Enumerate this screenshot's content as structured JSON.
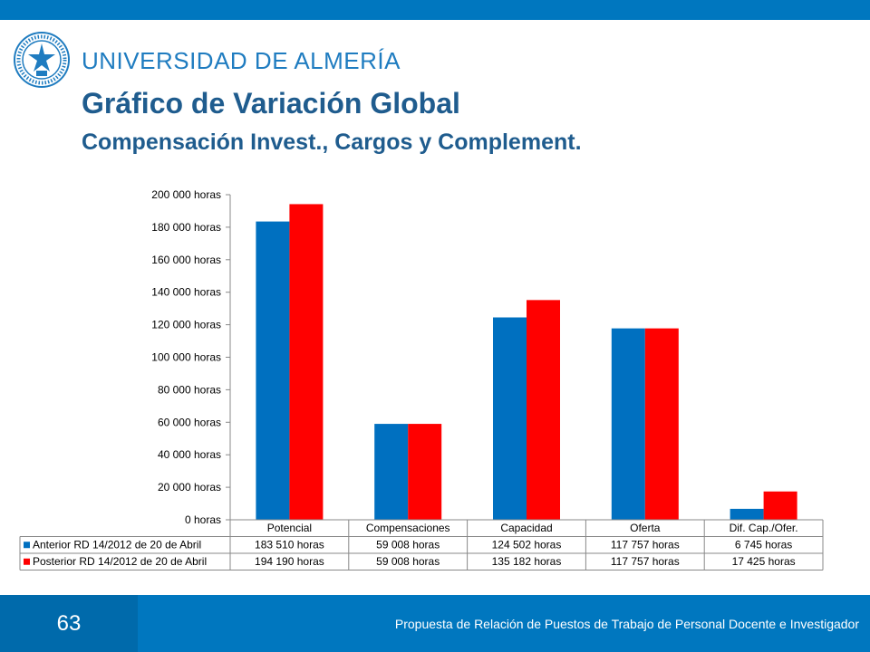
{
  "header": {
    "university": "UNIVERSIDAD DE ALMERÍA",
    "title": "Gráfico de Variación Global",
    "subtitle": "Compensación Invest., Cargos y Complement."
  },
  "footer": {
    "page_number": "63",
    "text": "Propuesta de Relación de Puestos de Trabajo de Personal Docente e Investigador"
  },
  "colors": {
    "brand_blue": "#0077bf",
    "series_anterior": "#0070c0",
    "series_posterior": "#ff0000"
  },
  "chart_data": {
    "type": "bar",
    "categories": [
      "Potencial",
      "Compensaciones",
      "Capacidad",
      "Oferta",
      "Dif. Cap./Ofer."
    ],
    "series": [
      {
        "name": "Anterior RD 14/2012 de 20 de Abril",
        "values": [
          183510,
          59008,
          124502,
          117757,
          6745
        ],
        "labels": [
          "183 510 horas",
          "59 008 horas",
          "124 502 horas",
          "117 757 horas",
          "6 745 horas"
        ]
      },
      {
        "name": "Posterior RD 14/2012 de 20 de Abril",
        "values": [
          194190,
          59008,
          135182,
          117757,
          17425
        ],
        "labels": [
          "194 190 horas",
          "59 008 horas",
          "135 182 horas",
          "117 757 horas",
          "17 425 horas"
        ]
      }
    ],
    "ylim": [
      0,
      200000
    ],
    "yticks": [
      0,
      20000,
      40000,
      60000,
      80000,
      100000,
      120000,
      140000,
      160000,
      180000,
      200000
    ],
    "ytick_labels": [
      "0 horas",
      "20 000 horas",
      "40 000 horas",
      "60 000 horas",
      "80 000 horas",
      "100 000 horas",
      "120 000 horas",
      "140 000 horas",
      "160 000 horas",
      "180 000 horas",
      "200 000 horas"
    ],
    "grid": false,
    "legend": "data-table"
  }
}
